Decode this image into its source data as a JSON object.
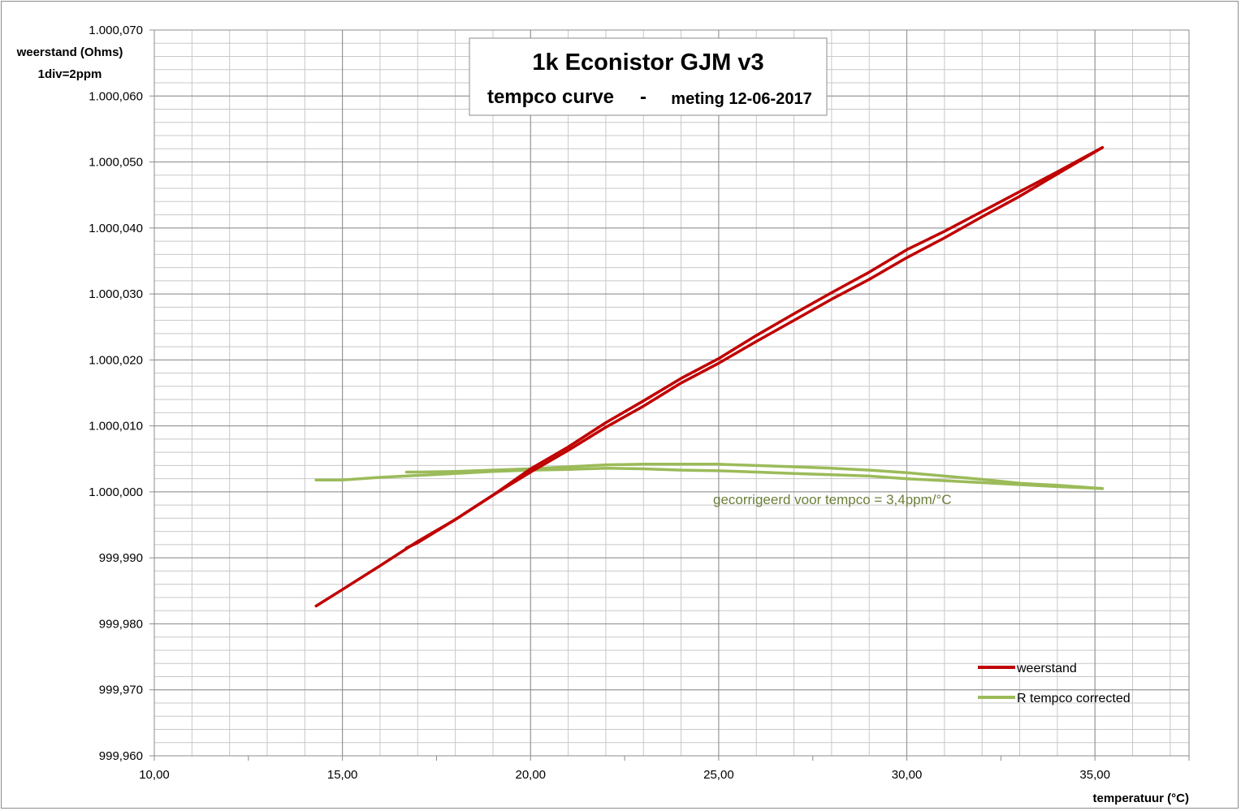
{
  "chart_data": {
    "type": "line",
    "title": "1k Econistor GJM v3",
    "subtitle_left": "tempco curve",
    "subtitle_sep": "-",
    "subtitle_right": "meting 12-06-2017",
    "ylabel": "weerstand (Ohms)",
    "ylabel_note": "1div=2ppm",
    "xlabel": "temperatuur (°C)",
    "xlim": [
      10,
      37.5
    ],
    "ylim": [
      999.96,
      1000.07
    ],
    "x_ticks": [
      "10,00",
      "15,00",
      "20,00",
      "25,00",
      "30,00",
      "35,00"
    ],
    "x_tick_values": [
      10,
      15,
      20,
      25,
      30,
      35
    ],
    "y_ticks": [
      "999,960",
      "999,970",
      "999,980",
      "999,990",
      "1.000,000",
      "1.000,010",
      "1.000,020",
      "1.000,030",
      "1.000,040",
      "1.000,050",
      "1.000,060",
      "1.000,070"
    ],
    "y_tick_values": [
      999.96,
      999.97,
      999.98,
      999.99,
      1000.0,
      1000.01,
      1000.02,
      1000.03,
      1000.04,
      1000.05,
      1000.06,
      1000.07
    ],
    "grid": true,
    "legend_position": "bottom-right",
    "annotation": "gecorrigeerd voor tempco = 3,4ppm/°C",
    "series": [
      {
        "name": "weerstand",
        "color": "#c00000",
        "segments": [
          {
            "x": [
              14.3,
              15.0,
              16.0,
              17.0,
              18.0,
              19.0,
              20.0,
              21.0,
              22.0,
              23.0,
              24.0,
              25.0,
              26.0,
              27.0,
              28.0,
              29.0,
              30.0,
              31.0,
              32.0,
              33.0,
              34.0,
              35.2
            ],
            "y": [
              999.9827,
              999.9852,
              999.9888,
              999.9925,
              999.9958,
              999.9995,
              1000.003,
              1000.0063,
              1000.0098,
              1000.013,
              1000.0165,
              1000.0195,
              1000.0228,
              1000.026,
              1000.0292,
              1000.0322,
              1000.0355,
              1000.0385,
              1000.0417,
              1000.0448,
              1000.0482,
              1000.0522
            ]
          },
          {
            "x": [
              16.7,
              17.0,
              18.0,
              19.0,
              20.0,
              21.0,
              22.0,
              23.0,
              24.0,
              25.0,
              26.0,
              27.0,
              28.0,
              29.0,
              30.0,
              31.0,
              32.0,
              33.0,
              34.0,
              35.2
            ],
            "y": [
              999.9915,
              999.9923,
              999.9958,
              999.9995,
              1000.0035,
              1000.0068,
              1000.0105,
              1000.0138,
              1000.0172,
              1000.0202,
              1000.0237,
              1000.027,
              1000.0302,
              1000.0333,
              1000.0367,
              1000.0395,
              1000.0425,
              1000.0455,
              1000.0485,
              1000.0522
            ]
          }
        ]
      },
      {
        "name": "R tempco  corrected",
        "color": "#9bbb59",
        "segments": [
          {
            "x": [
              14.3,
              15.0,
              16.0,
              17.0,
              18.0,
              19.0,
              20.0,
              21.0,
              22.0,
              23.0,
              24.0,
              25.0,
              26.0,
              27.0,
              28.0,
              29.0,
              30.0,
              31.0,
              32.0,
              33.0,
              34.0,
              35.2
            ],
            "y": [
              1000.0018,
              1000.0018,
              1000.0022,
              1000.0025,
              1000.0028,
              1000.0031,
              1000.0033,
              1000.0034,
              1000.0036,
              1000.0035,
              1000.0033,
              1000.0032,
              1000.003,
              1000.0028,
              1000.0026,
              1000.0024,
              1000.002,
              1000.0017,
              1000.0014,
              1000.0011,
              1000.0008,
              1000.0005
            ]
          },
          {
            "x": [
              16.7,
              17.0,
              18.0,
              19.0,
              20.0,
              21.0,
              22.0,
              23.0,
              24.0,
              25.0,
              26.0,
              27.0,
              28.0,
              29.0,
              30.0,
              31.0,
              32.0,
              33.0,
              34.0,
              35.2
            ],
            "y": [
              1000.003,
              1000.003,
              1000.0031,
              1000.0033,
              1000.0035,
              1000.0038,
              1000.0041,
              1000.0042,
              1000.0042,
              1000.0042,
              1000.004,
              1000.0038,
              1000.0036,
              1000.0033,
              1000.0029,
              1000.0024,
              1000.0019,
              1000.0013,
              1000.001,
              1000.0005
            ]
          }
        ]
      }
    ]
  }
}
